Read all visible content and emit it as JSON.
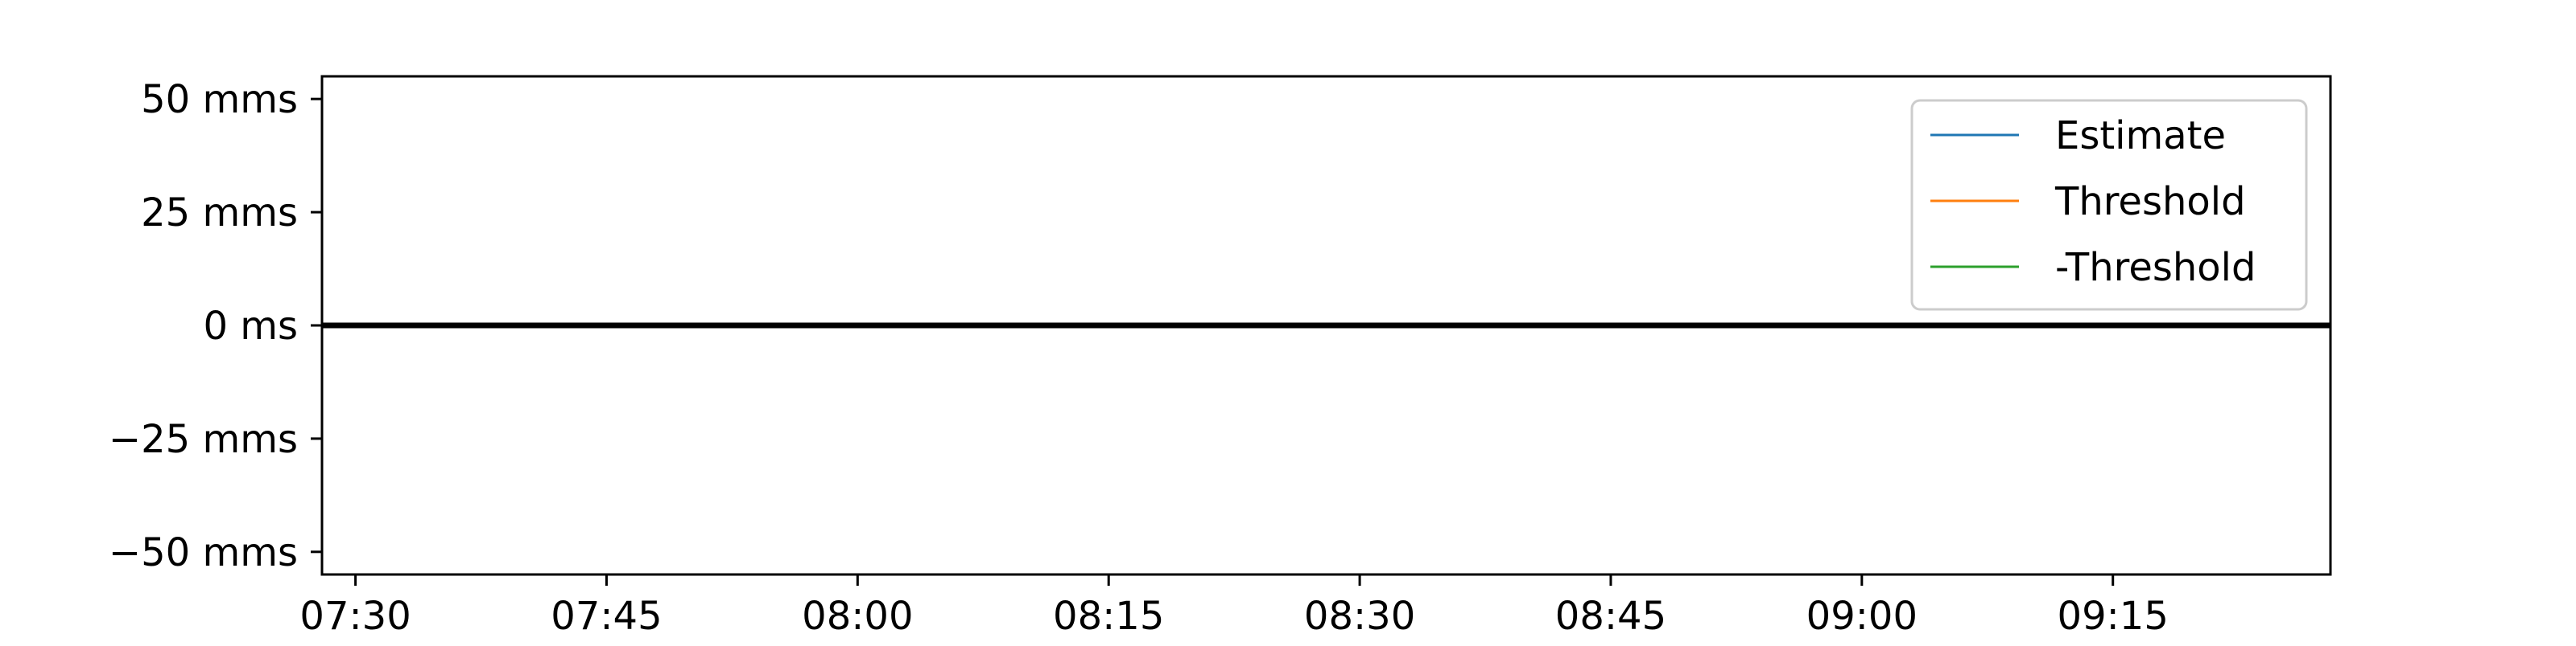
{
  "chart_data": {
    "type": "line",
    "title": "",
    "xlabel": "",
    "ylabel": "",
    "x_ticks": [
      "07:30",
      "07:45",
      "08:00",
      "08:15",
      "08:30",
      "08:45",
      "09:00",
      "09:15"
    ],
    "x_range": [
      "07:28",
      "09:28"
    ],
    "y_ticks": [
      {
        "value": 50,
        "label": "50 mms"
      },
      {
        "value": 25,
        "label": "25 mms"
      },
      {
        "value": 0,
        "label": "0 ms"
      },
      {
        "value": -25,
        "label": "−25 mms"
      },
      {
        "value": -50,
        "label": "−50 mms"
      }
    ],
    "ylim": [
      -55,
      55
    ],
    "grid": false,
    "legend_position": "top-right",
    "series": [
      {
        "name": "Estimate",
        "color": "#1f77b4",
        "values": []
      },
      {
        "name": "Threshold",
        "color": "#ff7f0e",
        "values": []
      },
      {
        "name": "-Threshold",
        "color": "#2ca02c",
        "values": []
      }
    ],
    "reference_line": {
      "y": 0,
      "color": "#000000"
    }
  }
}
